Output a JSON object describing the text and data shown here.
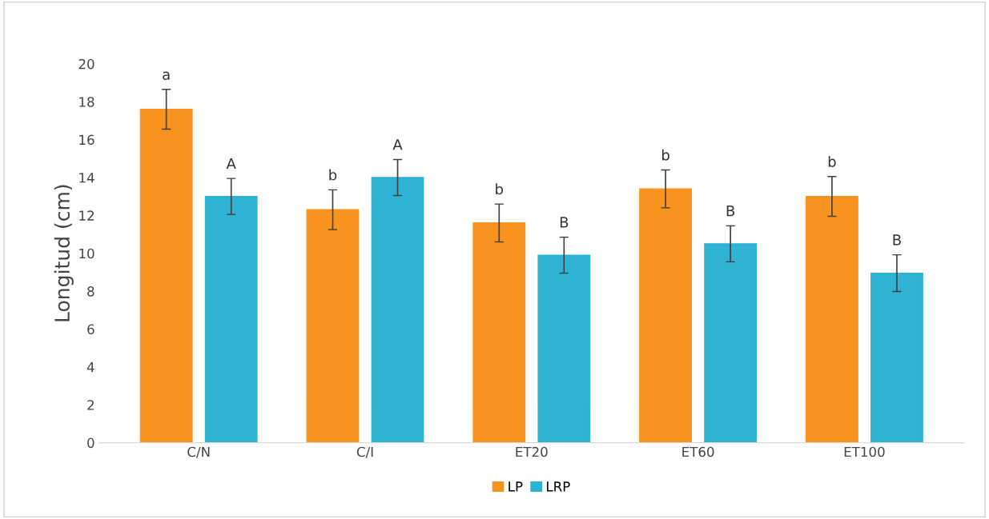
{
  "chart_data": {
    "type": "bar",
    "ylabel": "Longitud (cm)",
    "categories": [
      "C/N",
      "C/I",
      "ET20",
      "ET60",
      "ET100"
    ],
    "series": [
      {
        "name": "LP",
        "color": "#f7931e",
        "values": [
          17.6,
          12.3,
          11.6,
          13.4,
          13.0
        ],
        "errors": [
          1.05,
          1.05,
          1.0,
          1.0,
          1.05
        ]
      },
      {
        "name": "LRP",
        "color": "#2fb2d4",
        "values": [
          13.0,
          14.0,
          9.9,
          10.5,
          8.95
        ],
        "errors": [
          0.95,
          0.95,
          0.95,
          0.95,
          0.97
        ]
      }
    ],
    "ylim": [
      0,
      20
    ],
    "yticks": [
      0,
      2,
      4,
      6,
      8,
      10,
      12,
      14,
      16,
      18,
      20
    ],
    "grid": false,
    "legend": "bottom",
    "annotations": [
      "a",
      "A",
      "b",
      "A",
      "b",
      "B",
      "b",
      "B",
      "b",
      "B"
    ]
  }
}
